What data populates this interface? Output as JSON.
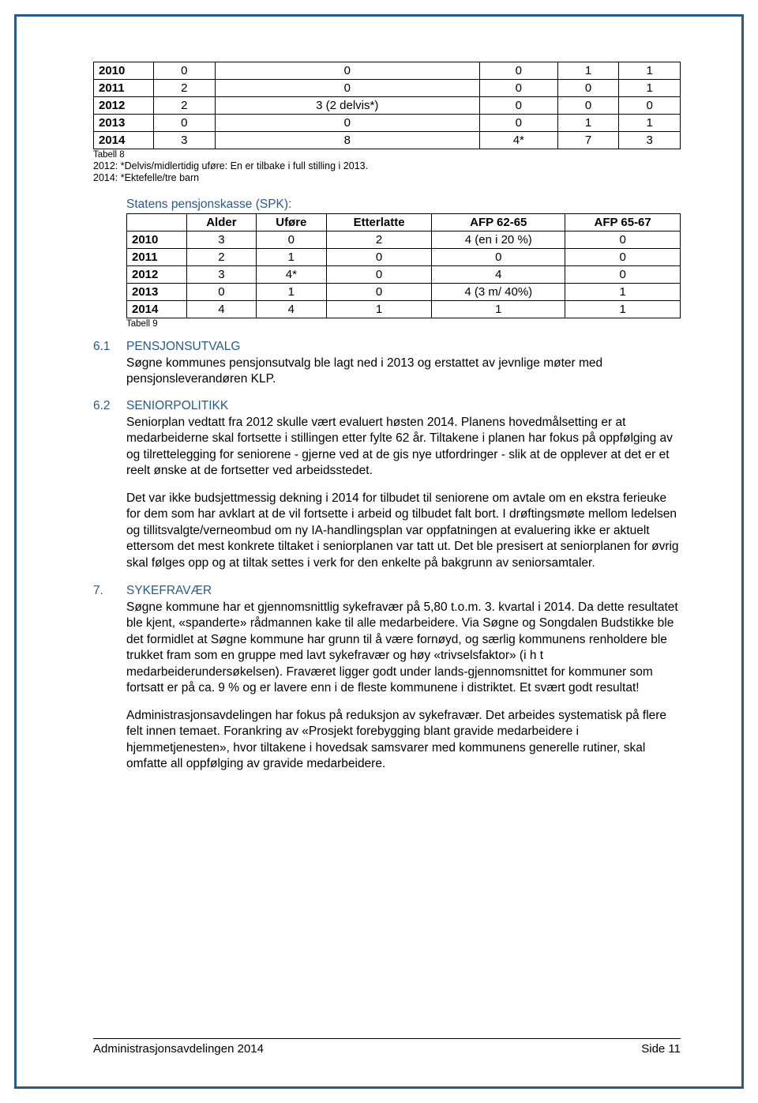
{
  "table8": {
    "rows": [
      [
        "2010",
        "0",
        "0",
        "0",
        "1",
        "1"
      ],
      [
        "2011",
        "2",
        "0",
        "0",
        "0",
        "1"
      ],
      [
        "2012",
        "2",
        "3 (2 delvis*)",
        "0",
        "0",
        "0"
      ],
      [
        "2013",
        "0",
        "0",
        "0",
        "1",
        "1"
      ],
      [
        "2014",
        "3",
        "8",
        "4*",
        "7",
        "3"
      ]
    ],
    "label": "Tabell 8",
    "note1": "2012: *Delvis/midlertidig uføre: En er tilbake i full stilling i 2013.",
    "note2": "2014: *Ektefelle/tre barn"
  },
  "spk": {
    "title": "Statens pensjonskasse (SPK):",
    "headers": [
      "",
      "Alder",
      "Uføre",
      "Etterlatte",
      "AFP 62-65",
      "AFP 65-67"
    ],
    "rows": [
      [
        "2010",
        "3",
        "0",
        "2",
        "4 (en i 20 %)",
        "0"
      ],
      [
        "2011",
        "2",
        "1",
        "0",
        "0",
        "0"
      ],
      [
        "2012",
        "3",
        "4*",
        "0",
        "4",
        "0"
      ],
      [
        "2013",
        "0",
        "1",
        "0",
        "4 (3 m/ 40%)",
        "1"
      ],
      [
        "2014",
        "4",
        "4",
        "1",
        "1",
        "1"
      ]
    ],
    "label": "Tabell 9"
  },
  "s61": {
    "num": "6.1",
    "title": "PENSJONSUTVALG",
    "p1": "Søgne kommunes pensjonsutvalg ble lagt ned i 2013 og erstattet av jevnlige møter med pensjonsleverandøren KLP."
  },
  "s62": {
    "num": "6.2",
    "title": "SENIORPOLITIKK",
    "p1": "Seniorplan vedtatt fra 2012 skulle vært evaluert høsten 2014. Planens hovedmålsetting er at medarbeiderne skal fortsette i stillingen etter fylte 62 år. Tiltakene i planen har fokus på oppfølging av og tilrettelegging for seniorene - gjerne ved at de gis nye utfordringer - slik at de opplever at det er et reelt ønske at de fortsetter ved arbeidsstedet.",
    "p2": "Det var ikke budsjettmessig dekning i 2014 for tilbudet til seniorene om avtale om en ekstra ferieuke for dem som har avklart at de vil fortsette i arbeid og tilbudet falt bort. I drøftingsmøte mellom ledelsen og tillitsvalgte/verneombud om ny IA-handlingsplan var oppfatningen at evaluering ikke er aktuelt ettersom det mest konkrete tiltaket i seniorplanen var tatt ut.  Det ble presisert at seniorplanen for øvrig skal følges opp og at tiltak settes i verk for den enkelte på bakgrunn av seniorsamtaler."
  },
  "s7": {
    "num": "7.",
    "title": "SYKEFRAVÆR",
    "p1": "Søgne kommune har et gjennomsnittlig sykefravær på 5,80 t.o.m. 3. kvartal i 2014. Da dette resultatet ble kjent, «spanderte» rådmannen kake til alle medarbeidere. Via Søgne og Songdalen Budstikke ble det formidlet at Søgne kommune har grunn til å være fornøyd, og særlig kommunens renholdere ble trukket fram som en gruppe med lavt sykefravær og høy «trivselsfaktor» (i h t medarbeiderundersøkelsen).  Fraværet ligger godt under lands-gjennomsnittet for kommuner som fortsatt er på ca. 9 % og er lavere enn i de fleste kommunene i distriktet. Et svært godt resultat!",
    "p2": "Administrasjonsavdelingen har fokus på reduksjon av sykefravær. Det arbeides systematisk på flere felt innen temaet. Forankring av «Prosjekt forebygging blant gravide medarbeidere i hjemmetjenesten», hvor tiltakene i hovedsak samsvarer med kommunens generelle rutiner, skal omfatte all oppfølging av gravide medarbeidere."
  },
  "footer": {
    "left": "Administrasjonsavdelingen 2014",
    "right": "Side 11"
  }
}
